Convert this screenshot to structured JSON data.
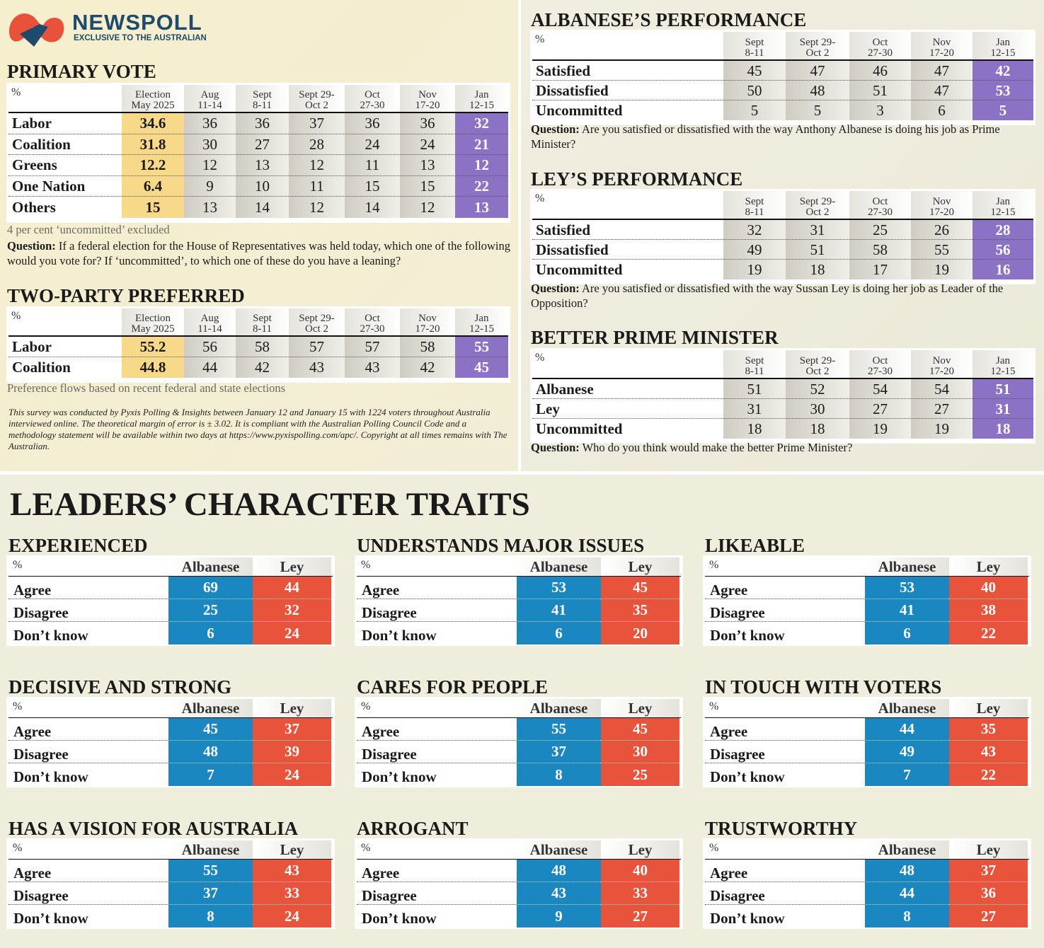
{
  "header": {
    "brand": "NEWSPOLL",
    "tagline": "EXCLUSIVE TO THE AUSTRALIAN"
  },
  "trend_tables": [
    {
      "title": "PRIMARY VOTE",
      "unit": "%",
      "columns": [
        [
          "Election",
          "May 2025"
        ],
        [
          "Aug",
          "11-14"
        ],
        [
          "Sept",
          "8-11"
        ],
        [
          "Sept 29-",
          "Oct 2"
        ],
        [
          "Oct",
          "27-30"
        ],
        [
          "Nov",
          "17-20"
        ],
        [
          "Jan",
          "12-15"
        ]
      ],
      "rows": [
        {
          "label": "Labor",
          "values": [
            34.6,
            36,
            36,
            37,
            36,
            36,
            32
          ]
        },
        {
          "label": "Coalition",
          "values": [
            31.8,
            30,
            27,
            28,
            24,
            24,
            21
          ]
        },
        {
          "label": "Greens",
          "values": [
            12.2,
            12,
            13,
            12,
            11,
            13,
            12
          ]
        },
        {
          "label": "One Nation",
          "values": [
            6.4,
            9,
            10,
            11,
            15,
            15,
            22
          ]
        },
        {
          "label": "Others",
          "values": [
            15,
            13,
            14,
            12,
            14,
            12,
            13
          ]
        }
      ],
      "note": "4 per cent ‘uncommitted’ excluded",
      "question": {
        "label": "Question:",
        "text": "If a federal election for the House of Representatives was held today, which one of the following would you vote for? If ‘uncommitted’, to which one of these do you have a leaning?"
      }
    },
    {
      "title": "TWO-PARTY PREFERRED",
      "unit": "%",
      "columns": [
        [
          "Election",
          "May 2025"
        ],
        [
          "Aug",
          "11-14"
        ],
        [
          "Sept",
          "8-11"
        ],
        [
          "Sept 29-",
          "Oct 2"
        ],
        [
          "Oct",
          "27-30"
        ],
        [
          "Nov",
          "17-20"
        ],
        [
          "Jan",
          "12-15"
        ]
      ],
      "rows": [
        {
          "label": "Labor",
          "values": [
            55.2,
            56,
            58,
            57,
            57,
            58,
            55
          ]
        },
        {
          "label": "Coalition",
          "values": [
            44.8,
            44,
            42,
            43,
            43,
            42,
            45
          ]
        }
      ],
      "note": "Preference flows based on recent federal and state elections"
    },
    {
      "title": "ALBANESE’S PERFORMANCE",
      "unit": "%",
      "columns": [
        [
          "Sept",
          "8-11"
        ],
        [
          "Sept 29-",
          "Oct 2"
        ],
        [
          "Oct",
          "27-30"
        ],
        [
          "Nov",
          "17-20"
        ],
        [
          "Jan",
          "12-15"
        ]
      ],
      "rows": [
        {
          "label": "Satisfied",
          "values": [
            45,
            47,
            46,
            47,
            42
          ]
        },
        {
          "label": "Dissatisfied",
          "values": [
            50,
            48,
            51,
            47,
            53
          ]
        },
        {
          "label": "Uncommitted",
          "values": [
            5,
            5,
            3,
            6,
            5
          ]
        }
      ],
      "question": {
        "label": "Question:",
        "text": "Are you satisfied or dissatisfied with the way Anthony Albanese is doing his job as Prime Minister?"
      }
    },
    {
      "title": "LEY’S PERFORMANCE",
      "unit": "%",
      "columns": [
        [
          "Sept",
          "8-11"
        ],
        [
          "Sept 29-",
          "Oct 2"
        ],
        [
          "Oct",
          "27-30"
        ],
        [
          "Nov",
          "17-20"
        ],
        [
          "Jan",
          "12-15"
        ]
      ],
      "rows": [
        {
          "label": "Satisfied",
          "values": [
            32,
            31,
            25,
            26,
            28
          ]
        },
        {
          "label": "Dissatisfied",
          "values": [
            49,
            51,
            58,
            55,
            56
          ]
        },
        {
          "label": "Uncommitted",
          "values": [
            19,
            18,
            17,
            19,
            16
          ]
        }
      ],
      "question": {
        "label": "Question:",
        "text": "Are you satisfied or dissatisfied with the way Sussan Ley is doing her job as Leader of the Opposition?"
      }
    },
    {
      "title": "BETTER PRIME MINISTER",
      "unit": "%",
      "columns": [
        [
          "Sept",
          "8-11"
        ],
        [
          "Sept 29-",
          "Oct 2"
        ],
        [
          "Oct",
          "27-30"
        ],
        [
          "Nov",
          "17-20"
        ],
        [
          "Jan",
          "12-15"
        ]
      ],
      "rows": [
        {
          "label": "Albanese",
          "values": [
            51,
            52,
            54,
            54,
            51
          ]
        },
        {
          "label": "Ley",
          "values": [
            31,
            30,
            27,
            27,
            31
          ]
        },
        {
          "label": "Uncommitted",
          "values": [
            18,
            18,
            19,
            19,
            18
          ]
        }
      ],
      "question": {
        "label": "Question:",
        "text": "Who do you think would make the better Prime Minister?"
      }
    }
  ],
  "survey_note": "This survey was conducted by Pyxis Polling & Insights between January 12 and January 15 with 1224 voters throughout Australia interviewed online. The theoretical margin of error is ± 3.02. It is compliant with the Australian Polling Council Code and a methodology statement will be available within two days at https://www.pyxispolling.com/apc/. Copyright at all times remains with The Australian.",
  "traits": {
    "title": "LEADERS’ CHARACTER TRAITS",
    "unit": "%",
    "columns": [
      "Albanese",
      "Ley"
    ],
    "rows": [
      "Agree",
      "Disagree",
      "Don’t know"
    ],
    "panels": [
      {
        "title": "EXPERIENCED",
        "values": [
          [
            69,
            44
          ],
          [
            25,
            32
          ],
          [
            6,
            24
          ]
        ]
      },
      {
        "title": "UNDERSTANDS MAJOR ISSUES",
        "values": [
          [
            53,
            45
          ],
          [
            41,
            35
          ],
          [
            6,
            20
          ]
        ]
      },
      {
        "title": "LIKEABLE",
        "values": [
          [
            53,
            40
          ],
          [
            41,
            38
          ],
          [
            6,
            22
          ]
        ]
      },
      {
        "title": "DECISIVE AND STRONG",
        "values": [
          [
            45,
            37
          ],
          [
            48,
            39
          ],
          [
            7,
            24
          ]
        ]
      },
      {
        "title": "CARES FOR PEOPLE",
        "values": [
          [
            55,
            45
          ],
          [
            37,
            30
          ],
          [
            8,
            25
          ]
        ]
      },
      {
        "title": "IN TOUCH WITH VOTERS",
        "values": [
          [
            44,
            35
          ],
          [
            49,
            43
          ],
          [
            7,
            22
          ]
        ]
      },
      {
        "title": "HAS A VISION FOR AUSTRALIA",
        "values": [
          [
            55,
            43
          ],
          [
            37,
            33
          ],
          [
            8,
            24
          ]
        ]
      },
      {
        "title": "ARROGANT",
        "values": [
          [
            48,
            40
          ],
          [
            43,
            33
          ],
          [
            9,
            27
          ]
        ]
      },
      {
        "title": "TRUSTWORTHY",
        "values": [
          [
            48,
            37
          ],
          [
            44,
            36
          ],
          [
            8,
            27
          ]
        ]
      }
    ]
  }
}
